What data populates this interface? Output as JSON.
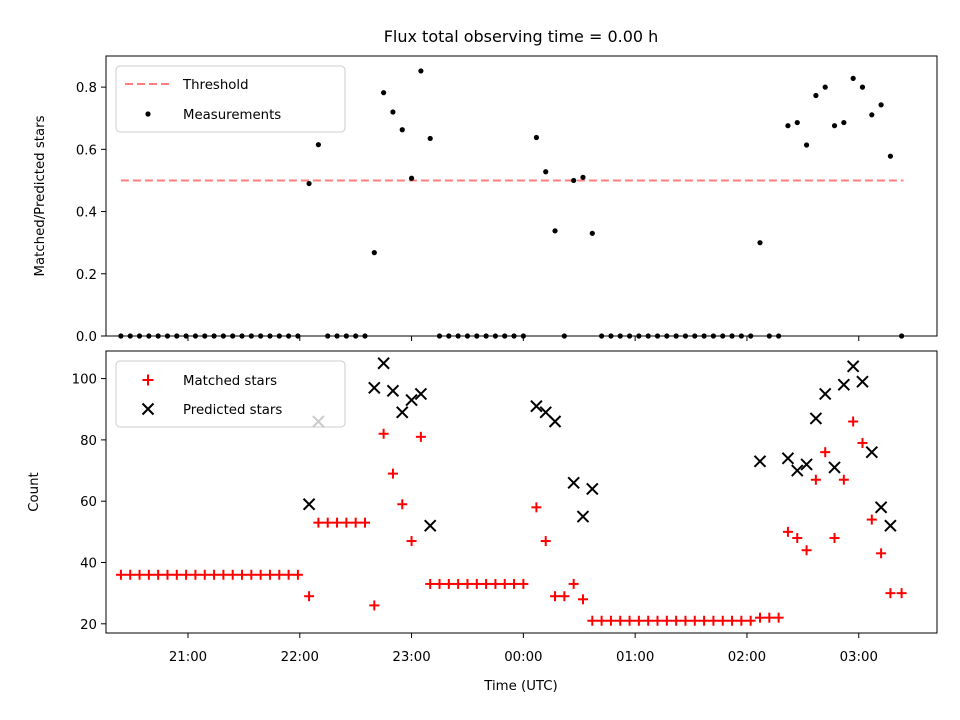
{
  "chart_data": [
    {
      "type": "scatter",
      "panel": "top",
      "title": "Flux total observing time = 0.00 h",
      "xlabel": "",
      "ylabel": "Matched/Predicted stars",
      "ylim": [
        0,
        0.9
      ],
      "yticks": [
        0.0,
        0.2,
        0.4,
        0.6,
        0.8
      ],
      "ytick_labels": [
        "0.0",
        "0.2",
        "0.4",
        "0.6",
        "0.8"
      ],
      "legend_position": "upper-left",
      "series": [
        {
          "name": "Threshold",
          "kind": "dashed-line",
          "color": "#ff7f7f",
          "points": [
            [
              "20:24",
              0.5
            ],
            [
              "03:24",
              0.5
            ]
          ]
        },
        {
          "name": "Measurements",
          "kind": "scatter",
          "color": "#000000",
          "points": [
            [
              "20:24",
              0
            ],
            [
              "20:29",
              0
            ],
            [
              "20:34",
              0
            ],
            [
              "20:39",
              0
            ],
            [
              "20:44",
              0
            ],
            [
              "20:49",
              0
            ],
            [
              "20:54",
              0
            ],
            [
              "20:59",
              0
            ],
            [
              "21:04",
              0
            ],
            [
              "21:09",
              0
            ],
            [
              "21:14",
              0
            ],
            [
              "21:19",
              0
            ],
            [
              "21:24",
              0
            ],
            [
              "21:29",
              0
            ],
            [
              "21:34",
              0
            ],
            [
              "21:39",
              0
            ],
            [
              "21:44",
              0
            ],
            [
              "21:49",
              0
            ],
            [
              "21:54",
              0
            ],
            [
              "21:59",
              0
            ],
            [
              "22:05",
              0.49
            ],
            [
              "22:10",
              0.615
            ],
            [
              "22:15",
              0
            ],
            [
              "22:20",
              0
            ],
            [
              "22:25",
              0
            ],
            [
              "22:30",
              0
            ],
            [
              "22:35",
              0
            ],
            [
              "22:40",
              0.268
            ],
            [
              "22:45",
              0.782
            ],
            [
              "22:50",
              0.72
            ],
            [
              "22:55",
              0.663
            ],
            [
              "23:00",
              0.507
            ],
            [
              "23:05",
              0.852
            ],
            [
              "23:10",
              0.635
            ],
            [
              "23:15",
              0
            ],
            [
              "23:20",
              0
            ],
            [
              "23:25",
              0
            ],
            [
              "23:30",
              0
            ],
            [
              "23:35",
              0
            ],
            [
              "23:40",
              0
            ],
            [
              "23:45",
              0
            ],
            [
              "23:50",
              0
            ],
            [
              "23:55",
              0
            ],
            [
              "00:00",
              0
            ],
            [
              "00:07",
              0.638
            ],
            [
              "00:12",
              0.528
            ],
            [
              "00:17",
              0.338
            ],
            [
              "00:22",
              0
            ],
            [
              "00:27",
              0.5
            ],
            [
              "00:32",
              0.51
            ],
            [
              "00:37",
              0.33
            ],
            [
              "00:42",
              0
            ],
            [
              "00:47",
              0
            ],
            [
              "00:52",
              0
            ],
            [
              "00:57",
              0
            ],
            [
              "01:02",
              0
            ],
            [
              "01:07",
              0
            ],
            [
              "01:12",
              0
            ],
            [
              "01:17",
              0
            ],
            [
              "01:22",
              0
            ],
            [
              "01:27",
              0
            ],
            [
              "01:32",
              0
            ],
            [
              "01:37",
              0
            ],
            [
              "01:42",
              0
            ],
            [
              "01:47",
              0
            ],
            [
              "01:52",
              0
            ],
            [
              "01:57",
              0
            ],
            [
              "02:02",
              0
            ],
            [
              "02:07",
              0.3
            ],
            [
              "02:12",
              0
            ],
            [
              "02:17",
              0
            ],
            [
              "02:22",
              0.676
            ],
            [
              "02:27",
              0.686
            ],
            [
              "02:32",
              0.614
            ],
            [
              "02:37",
              0.773
            ],
            [
              "02:42",
              0.8
            ],
            [
              "02:47",
              0.676
            ],
            [
              "02:52",
              0.686
            ],
            [
              "02:57",
              0.828
            ],
            [
              "03:02",
              0.8
            ],
            [
              "03:07",
              0.711
            ],
            [
              "03:12",
              0.743
            ],
            [
              "03:17",
              0.578
            ],
            [
              "03:23",
              0
            ]
          ]
        }
      ]
    },
    {
      "type": "scatter",
      "panel": "bottom",
      "xlabel": "Time (UTC)",
      "ylabel": "Count",
      "ylim": [
        17,
        109
      ],
      "yticks": [
        20,
        40,
        60,
        80,
        100
      ],
      "ytick_labels": [
        "20",
        "40",
        "60",
        "80",
        "100"
      ],
      "xrange": [
        "20:16",
        "03:42"
      ],
      "xticks": [
        "21:00",
        "22:00",
        "23:00",
        "00:00",
        "01:00",
        "02:00",
        "03:00"
      ],
      "legend_position": "upper-left",
      "series": [
        {
          "name": "Matched stars",
          "kind": "plus",
          "color": "#ff0000",
          "points": [
            [
              "20:24",
              36
            ],
            [
              "20:29",
              36
            ],
            [
              "20:34",
              36
            ],
            [
              "20:39",
              36
            ],
            [
              "20:44",
              36
            ],
            [
              "20:49",
              36
            ],
            [
              "20:54",
              36
            ],
            [
              "20:59",
              36
            ],
            [
              "21:04",
              36
            ],
            [
              "21:09",
              36
            ],
            [
              "21:14",
              36
            ],
            [
              "21:19",
              36
            ],
            [
              "21:24",
              36
            ],
            [
              "21:29",
              36
            ],
            [
              "21:34",
              36
            ],
            [
              "21:39",
              36
            ],
            [
              "21:44",
              36
            ],
            [
              "21:49",
              36
            ],
            [
              "21:54",
              36
            ],
            [
              "21:59",
              36
            ],
            [
              "22:05",
              29
            ],
            [
              "22:10",
              53
            ],
            [
              "22:15",
              53
            ],
            [
              "22:20",
              53
            ],
            [
              "22:25",
              53
            ],
            [
              "22:30",
              53
            ],
            [
              "22:35",
              53
            ],
            [
              "22:40",
              26
            ],
            [
              "22:45",
              82
            ],
            [
              "22:50",
              69
            ],
            [
              "22:55",
              59
            ],
            [
              "23:00",
              47
            ],
            [
              "23:05",
              81
            ],
            [
              "23:10",
              33
            ],
            [
              "23:15",
              33
            ],
            [
              "23:20",
              33
            ],
            [
              "23:25",
              33
            ],
            [
              "23:30",
              33
            ],
            [
              "23:35",
              33
            ],
            [
              "23:40",
              33
            ],
            [
              "23:45",
              33
            ],
            [
              "23:50",
              33
            ],
            [
              "23:55",
              33
            ],
            [
              "00:00",
              33
            ],
            [
              "00:07",
              58
            ],
            [
              "00:12",
              47
            ],
            [
              "00:17",
              29
            ],
            [
              "00:22",
              29
            ],
            [
              "00:27",
              33
            ],
            [
              "00:32",
              28
            ],
            [
              "00:37",
              21
            ],
            [
              "00:42",
              21
            ],
            [
              "00:47",
              21
            ],
            [
              "00:52",
              21
            ],
            [
              "00:57",
              21
            ],
            [
              "01:02",
              21
            ],
            [
              "01:07",
              21
            ],
            [
              "01:12",
              21
            ],
            [
              "01:17",
              21
            ],
            [
              "01:22",
              21
            ],
            [
              "01:27",
              21
            ],
            [
              "01:32",
              21
            ],
            [
              "01:37",
              21
            ],
            [
              "01:42",
              21
            ],
            [
              "01:47",
              21
            ],
            [
              "01:52",
              21
            ],
            [
              "01:57",
              21
            ],
            [
              "02:02",
              21
            ],
            [
              "02:07",
              22
            ],
            [
              "02:12",
              22
            ],
            [
              "02:17",
              22
            ],
            [
              "02:22",
              50
            ],
            [
              "02:27",
              48
            ],
            [
              "02:32",
              44
            ],
            [
              "02:37",
              67
            ],
            [
              "02:42",
              76
            ],
            [
              "02:47",
              48
            ],
            [
              "02:52",
              67
            ],
            [
              "02:57",
              86
            ],
            [
              "03:02",
              79
            ],
            [
              "03:07",
              54
            ],
            [
              "03:12",
              43
            ],
            [
              "03:17",
              30
            ],
            [
              "03:23",
              30
            ]
          ]
        },
        {
          "name": "Predicted stars",
          "kind": "x",
          "color": "#000000",
          "points": [
            [
              "22:05",
              59
            ],
            [
              "22:10",
              86
            ],
            [
              "22:40",
              97
            ],
            [
              "22:45",
              105
            ],
            [
              "22:50",
              96
            ],
            [
              "22:55",
              89
            ],
            [
              "23:00",
              93
            ],
            [
              "23:05",
              95
            ],
            [
              "23:10",
              52
            ],
            [
              "00:07",
              91
            ],
            [
              "00:12",
              89
            ],
            [
              "00:17",
              86
            ],
            [
              "00:27",
              66
            ],
            [
              "00:32",
              55
            ],
            [
              "00:37",
              64
            ],
            [
              "02:07",
              73
            ],
            [
              "02:22",
              74
            ],
            [
              "02:27",
              70
            ],
            [
              "02:32",
              72
            ],
            [
              "02:37",
              87
            ],
            [
              "02:42",
              95
            ],
            [
              "02:47",
              71
            ],
            [
              "02:52",
              98
            ],
            [
              "02:57",
              104
            ],
            [
              "03:02",
              99
            ],
            [
              "03:07",
              76
            ],
            [
              "03:12",
              58
            ],
            [
              "03:17",
              52
            ]
          ]
        }
      ]
    }
  ]
}
